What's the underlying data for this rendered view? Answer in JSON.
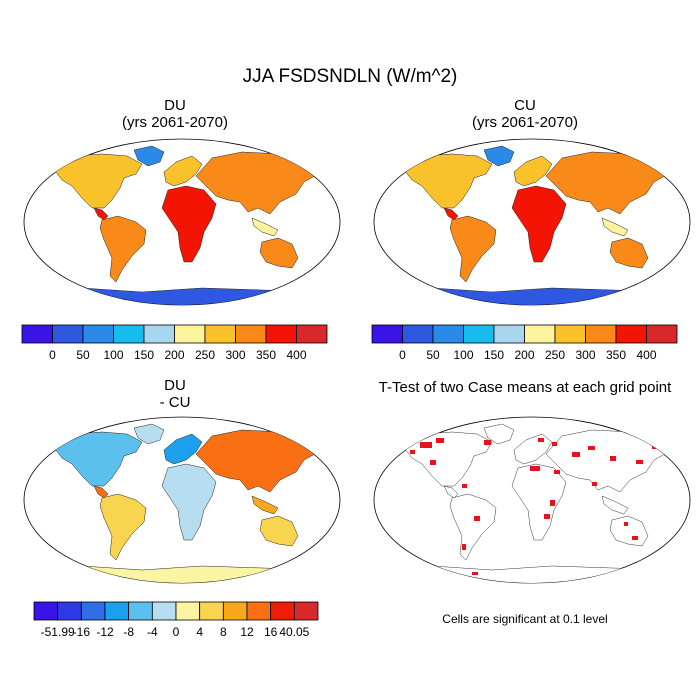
{
  "figure": {
    "title": "JJA FSDSNDLN (W/m^2)",
    "note": "Cells are significant at 0.1 level"
  },
  "panels": {
    "du": {
      "title_line1": "DU",
      "title_line2": "(yrs 2061-2070)"
    },
    "cu": {
      "title_line1": "CU",
      "title_line2": "(yrs 2061-2070)"
    },
    "diff": {
      "title_line1": "DU",
      "title_line2": "- CU"
    },
    "ttest": {
      "title_line1": "T-Test of two Case means at each grid point"
    }
  },
  "colorbars": {
    "main": {
      "colors": [
        "#3a13e6",
        "#2f58e0",
        "#2b8ae8",
        "#16bcec",
        "#a8d6ee",
        "#fbf49c",
        "#f9c22a",
        "#f98a19",
        "#f31404",
        "#d8282a"
      ],
      "labels": [
        "0",
        "50",
        "100",
        "150",
        "200",
        "250",
        "300",
        "350",
        "400"
      ]
    },
    "diff": {
      "colors": [
        "#3a13e6",
        "#2f3ae6",
        "#2f6ee6",
        "#1aa0ec",
        "#5cc0ef",
        "#b6ddf0",
        "#fbf4a3",
        "#f9d44e",
        "#f9a81c",
        "#f86f14",
        "#ee1d07",
        "#d8282a"
      ],
      "labels": [
        "-51.99",
        "-16",
        "-12",
        "-8",
        "-4",
        "0",
        "4",
        "8",
        "12",
        "16",
        "40.05"
      ]
    }
  }
}
